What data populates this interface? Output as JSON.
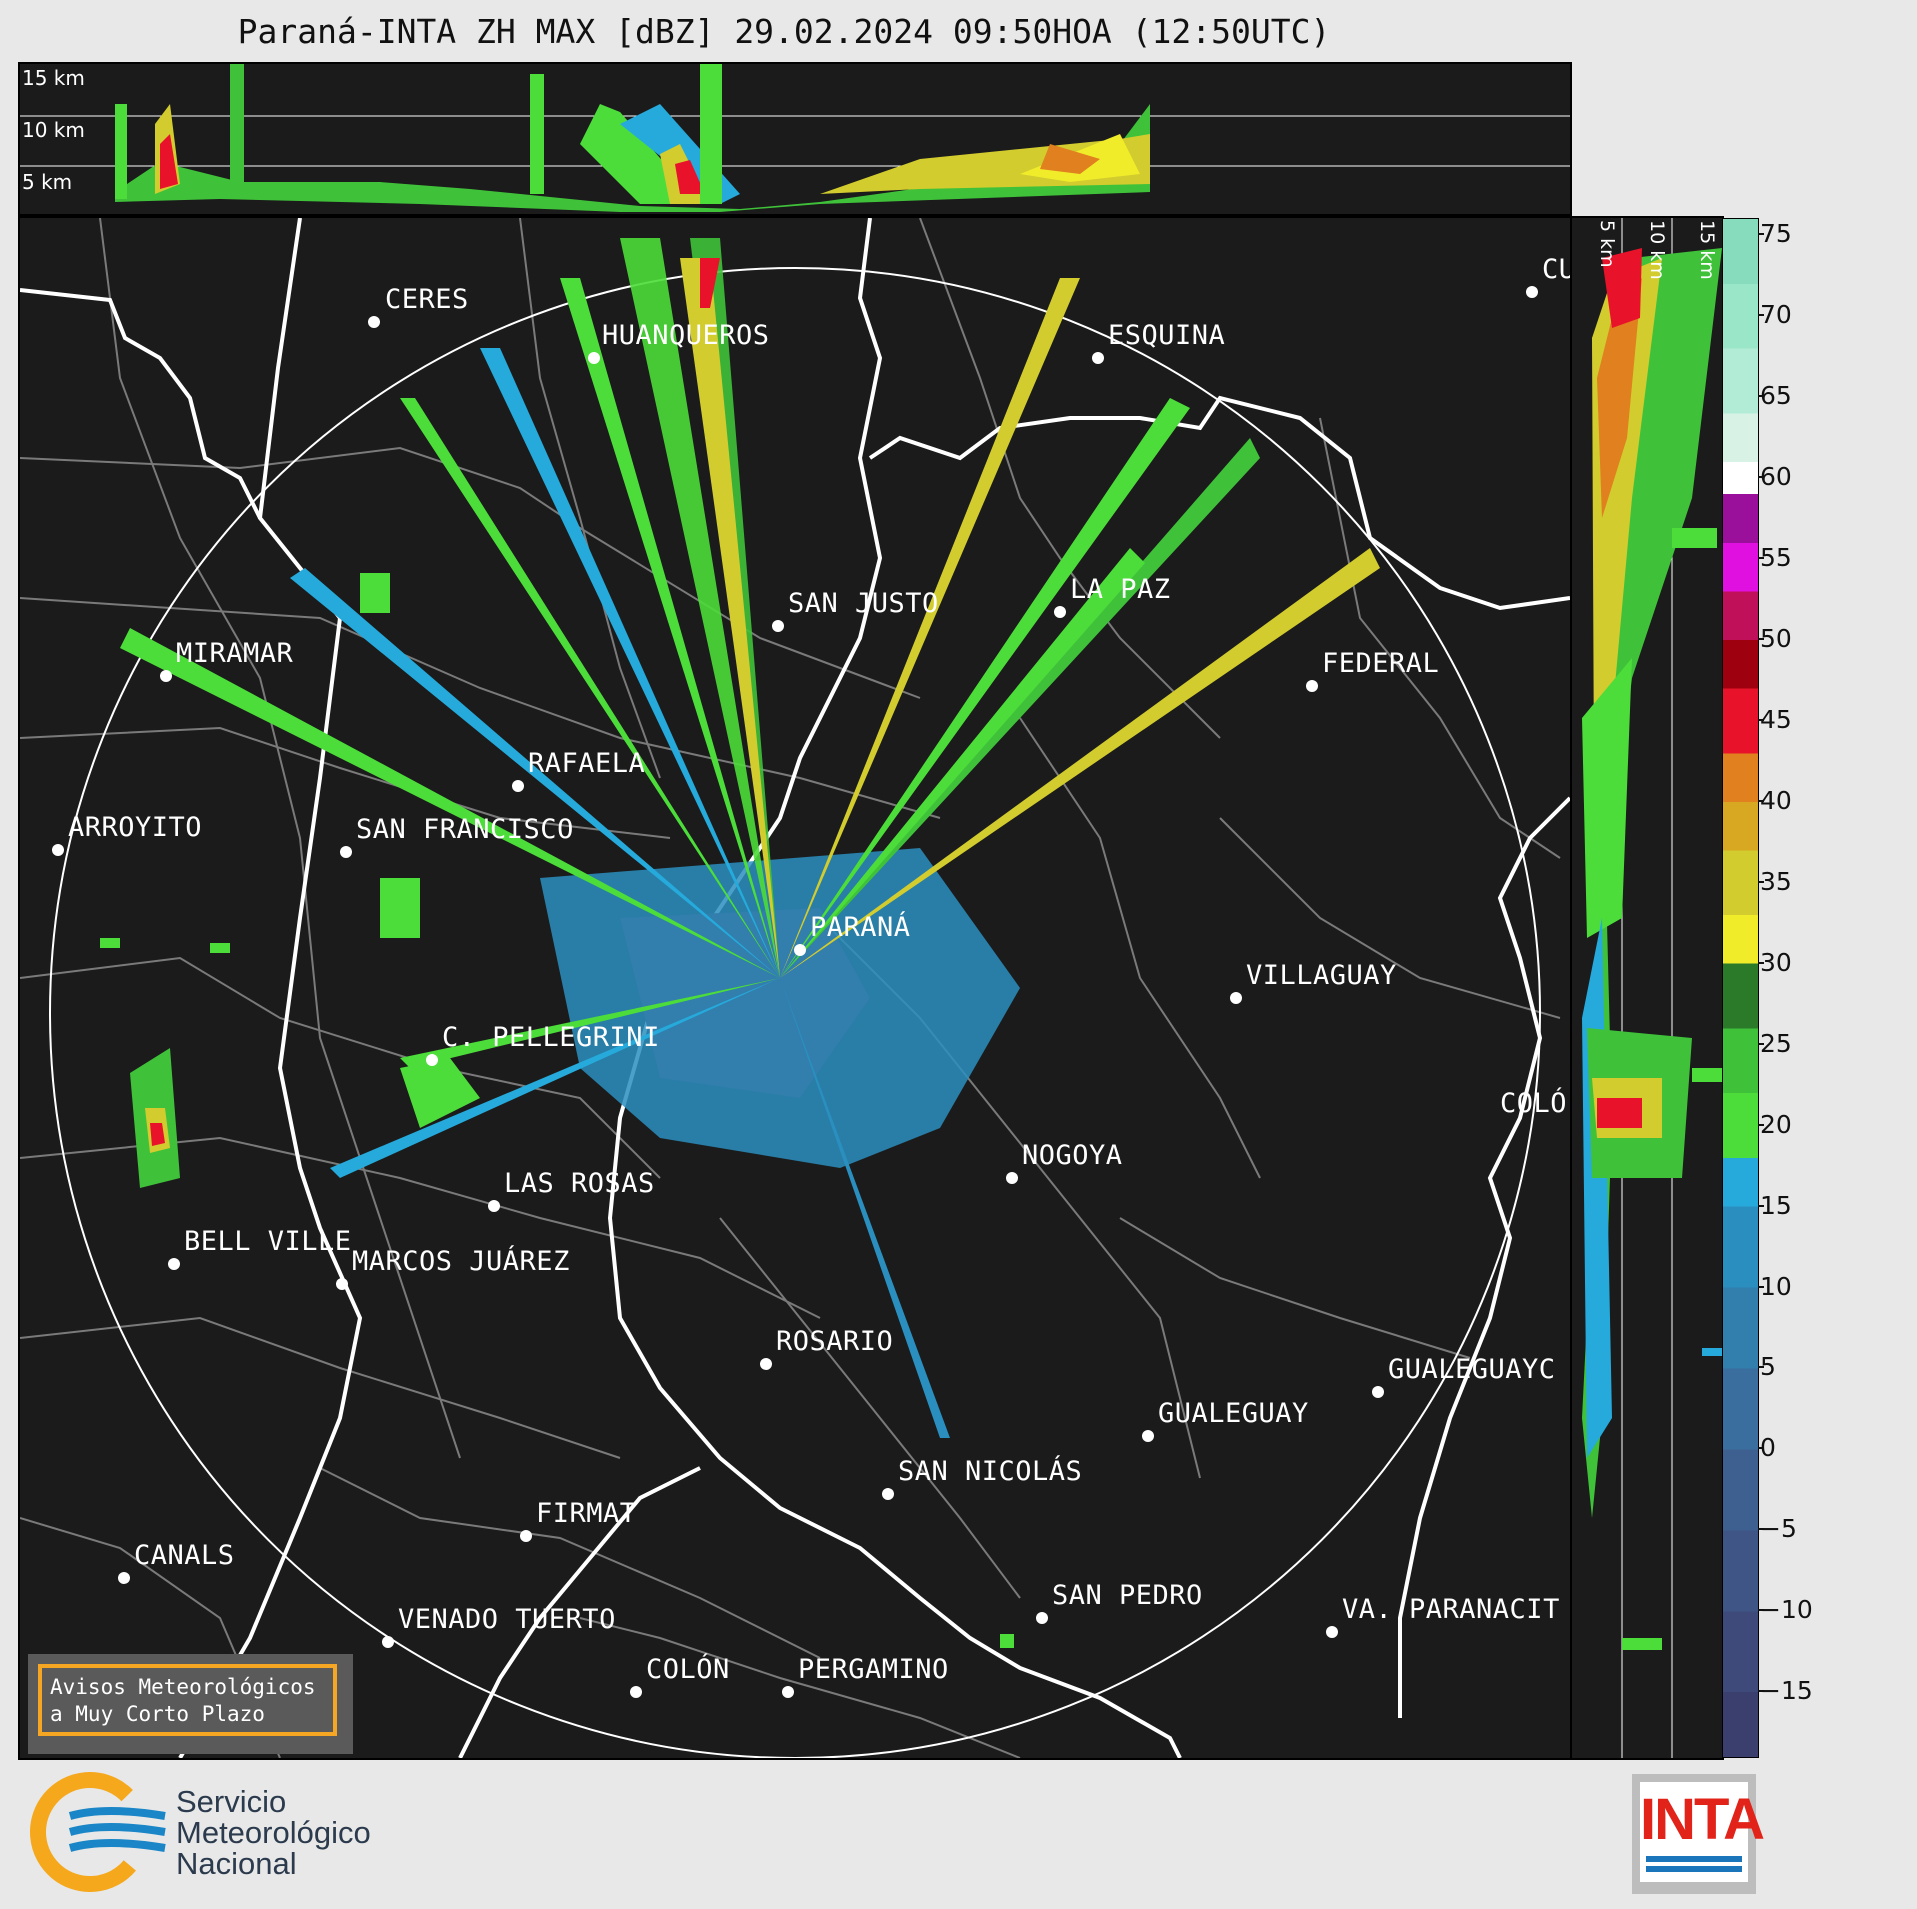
{
  "title": "Paraná-INTA ZH MAX [dBZ] 29.02.2024 09:50HOA (12:50UTC)",
  "top_panel": {
    "height_labels": [
      "15 km",
      "10 km",
      "5 km"
    ]
  },
  "side_panel": {
    "height_labels": [
      "5 km",
      "10 km",
      "15 km"
    ]
  },
  "colorbar": {
    "unit": "dBZ",
    "ticks": [
      "75",
      "70",
      "65",
      "60",
      "55",
      "50",
      "45",
      "40",
      "35",
      "30",
      "25",
      "20",
      "15",
      "10",
      "5",
      "0",
      "−5",
      "−10",
      "−15"
    ],
    "range": [
      -19,
      76
    ],
    "bands": [
      {
        "from": -19,
        "to": -15,
        "color": "#3a3f6e"
      },
      {
        "from": -15,
        "to": -10,
        "color": "#3d4a7a"
      },
      {
        "from": -10,
        "to": -5,
        "color": "#3e5586"
      },
      {
        "from": -5,
        "to": 0,
        "color": "#3d6090"
      },
      {
        "from": 0,
        "to": 5,
        "color": "#3a6e9e"
      },
      {
        "from": 5,
        "to": 10,
        "color": "#327ead"
      },
      {
        "from": 10,
        "to": 15,
        "color": "#2a8fbf"
      },
      {
        "from": 15,
        "to": 18,
        "color": "#25aadb"
      },
      {
        "from": 18,
        "to": 22,
        "color": "#4cdd3a"
      },
      {
        "from": 22,
        "to": 26,
        "color": "#3fc23a"
      },
      {
        "from": 26,
        "to": 30,
        "color": "#2a7a2a"
      },
      {
        "from": 30,
        "to": 33,
        "color": "#f0ec2a"
      },
      {
        "from": 33,
        "to": 37,
        "color": "#d2cc2e"
      },
      {
        "from": 37,
        "to": 40,
        "color": "#d8a823"
      },
      {
        "from": 40,
        "to": 43,
        "color": "#e0801f"
      },
      {
        "from": 43,
        "to": 47,
        "color": "#e8132a"
      },
      {
        "from": 47,
        "to": 50,
        "color": "#9e0010"
      },
      {
        "from": 50,
        "to": 53,
        "color": "#c0105a"
      },
      {
        "from": 53,
        "to": 56,
        "color": "#e010e0"
      },
      {
        "from": 56,
        "to": 59,
        "color": "#9a109a"
      },
      {
        "from": 59,
        "to": 61,
        "color": "#ffffff"
      },
      {
        "from": 61,
        "to": 64,
        "color": "#d8f2e6"
      },
      {
        "from": 64,
        "to": 68,
        "color": "#b2ecd6"
      },
      {
        "from": 68,
        "to": 72,
        "color": "#9ae6c8"
      },
      {
        "from": 72,
        "to": 76,
        "color": "#86dcbc"
      }
    ]
  },
  "cities": [
    {
      "name": "CERES"
    },
    {
      "name": "HUANQUEROS"
    },
    {
      "name": "ESQUINA"
    },
    {
      "name": "CU"
    },
    {
      "name": "SAN JUSTO"
    },
    {
      "name": "LA PAZ"
    },
    {
      "name": "MIRAMAR"
    },
    {
      "name": "FEDERAL"
    },
    {
      "name": "RAFAELA"
    },
    {
      "name": "ARROYITO"
    },
    {
      "name": "SAN FRANCISCO"
    },
    {
      "name": "PARANÁ"
    },
    {
      "name": "VILLAGUAY"
    },
    {
      "name": "C. PELLEGRINI"
    },
    {
      "name": "COLÓ"
    },
    {
      "name": "NOGOYA"
    },
    {
      "name": "LAS ROSAS"
    },
    {
      "name": "BELL VILLE"
    },
    {
      "name": "MARCOS JUÁREZ"
    },
    {
      "name": "ROSARIO"
    },
    {
      "name": "GUALEGUAYC"
    },
    {
      "name": "GUALEGUAY"
    },
    {
      "name": "SAN NICOLÁS"
    },
    {
      "name": "FIRMAT"
    },
    {
      "name": "CANALS"
    },
    {
      "name": "SAN PEDRO"
    },
    {
      "name": "VENADO TUERTO"
    },
    {
      "name": "VA. PARANACIT"
    },
    {
      "name": "COLÓN"
    },
    {
      "name": "PERGAMINO"
    }
  ],
  "avisos": {
    "line1": "Avisos Meteorológicos",
    "line2": "a Muy Corto Plazo"
  },
  "smn_logo": {
    "line1": "Servicio",
    "line2": "Meteorológico",
    "line3": "Nacional"
  },
  "inta_logo": {
    "text": "INTA"
  }
}
